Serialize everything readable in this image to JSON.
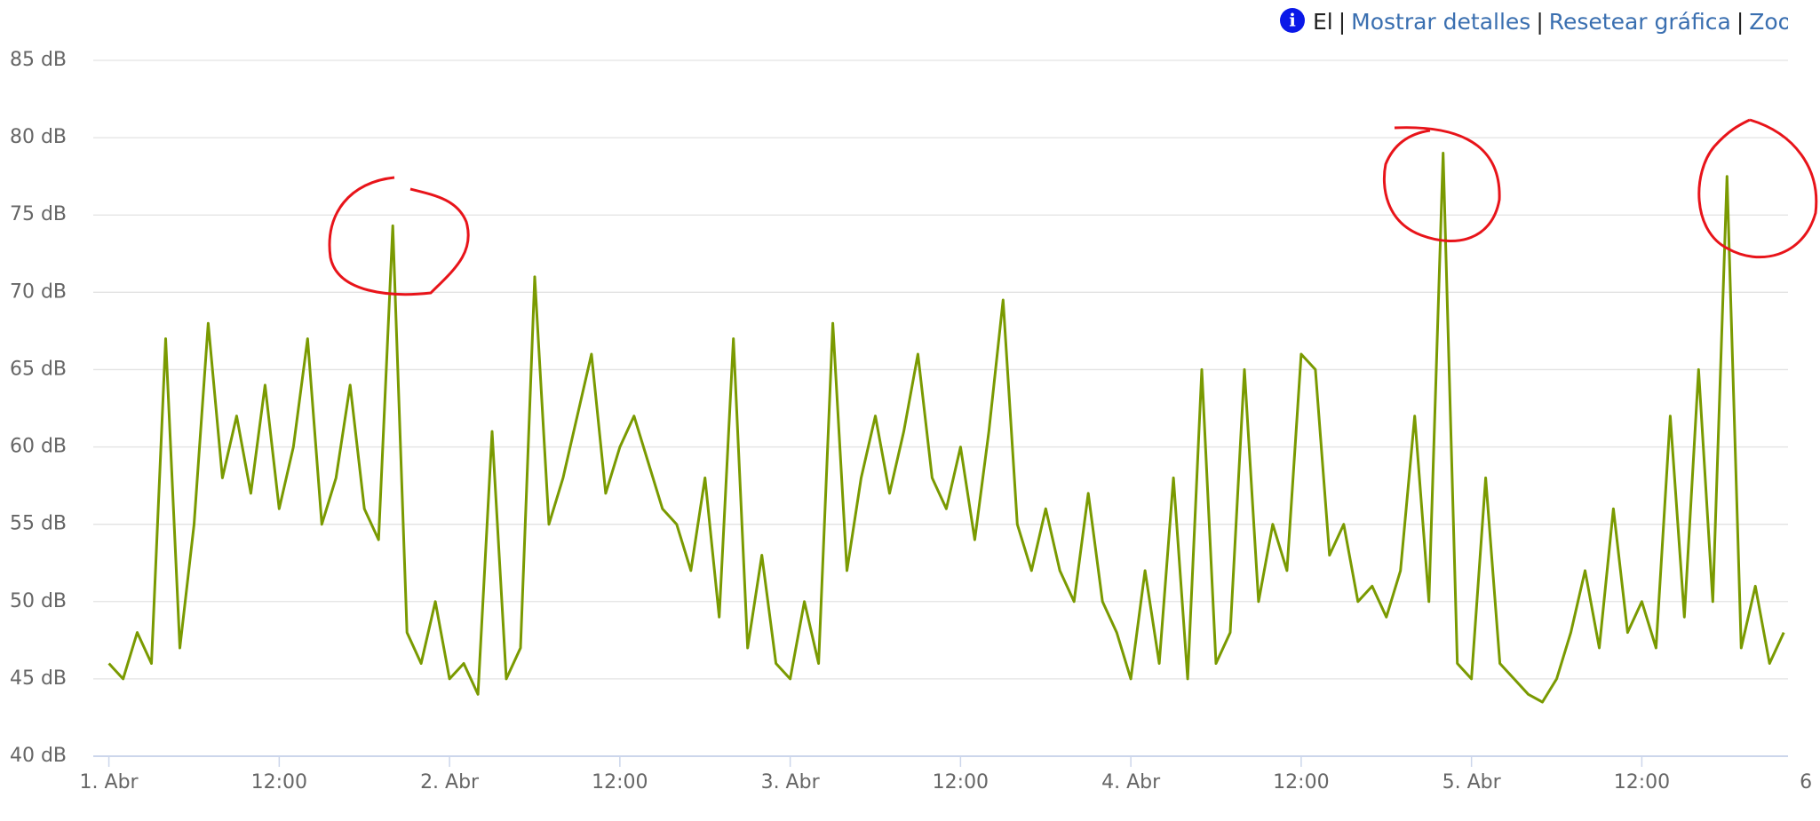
{
  "toolbar": {
    "info_label": "El",
    "separator": "|",
    "links": [
      "Mostrar detalles",
      "Resetear gráfica",
      "Zoom"
    ]
  },
  "chart_data": {
    "type": "line",
    "x": [
      0,
      1,
      2,
      3,
      4,
      5,
      6,
      7,
      8,
      9,
      10,
      11,
      12,
      13,
      14,
      15,
      16,
      17,
      18,
      19,
      20,
      21,
      22,
      23,
      24,
      25,
      26,
      27,
      28,
      29,
      30,
      31,
      32,
      33,
      34,
      35,
      36,
      37,
      38,
      39,
      40,
      41,
      42,
      43,
      44,
      45,
      46,
      47,
      48,
      49,
      50,
      51,
      52,
      53,
      54,
      55,
      56,
      57,
      58,
      59,
      60,
      61,
      62,
      63,
      64,
      65,
      66,
      67,
      68,
      69,
      70,
      71,
      72,
      73,
      74,
      75,
      76,
      77,
      78,
      79,
      80,
      81,
      82,
      83,
      84,
      85,
      86,
      87,
      88,
      89,
      90,
      91,
      92,
      93,
      94,
      95,
      96,
      97,
      98,
      99,
      100,
      101,
      102,
      103,
      104,
      105,
      106,
      107,
      108,
      109,
      110,
      111,
      112,
      113,
      114,
      115,
      116,
      117,
      118
    ],
    "series": [
      {
        "color": "#7a9a01",
        "values": [
          46,
          45,
          48,
          46,
          67,
          47,
          55,
          68,
          58,
          62,
          57,
          64,
          56,
          60,
          67,
          55,
          58,
          64,
          56,
          54,
          74.3,
          48,
          46,
          50,
          45,
          46,
          44,
          61,
          45,
          47,
          71,
          55,
          58,
          62,
          66,
          57,
          60,
          62,
          59,
          56,
          55,
          52,
          58,
          49,
          67,
          47,
          53,
          46,
          45,
          50,
          46,
          68,
          52,
          58,
          62,
          57,
          61,
          66,
          58,
          56,
          60,
          54,
          61,
          69.5,
          55,
          52,
          56,
          52,
          50,
          57,
          50,
          48,
          45,
          52,
          46,
          58,
          45,
          65,
          46,
          48,
          65,
          50,
          55,
          52,
          66,
          65,
          53,
          55,
          50,
          51,
          49,
          52,
          62,
          50,
          79,
          46,
          45,
          58,
          46,
          45,
          44,
          43.5,
          45,
          48,
          52,
          47,
          56,
          48,
          50,
          47,
          62,
          49,
          65,
          50,
          77.5,
          47,
          51,
          46,
          48
        ]
      }
    ],
    "xlim": [
      -1.1,
      118.3
    ],
    "xticks": [
      {
        "value": 0,
        "label": "1. Abr"
      },
      {
        "value": 12,
        "label": "12:00"
      },
      {
        "value": 24,
        "label": "2. Abr"
      },
      {
        "value": 36,
        "label": "12:00"
      },
      {
        "value": 48,
        "label": "3. Abr"
      },
      {
        "value": 60,
        "label": "12:00"
      },
      {
        "value": 72,
        "label": "4. Abr"
      },
      {
        "value": 84,
        "label": "12:00"
      },
      {
        "value": 96,
        "label": "5. Abr"
      },
      {
        "value": 108,
        "label": "12:00"
      },
      {
        "value": 120,
        "label": "6"
      }
    ],
    "ylim": [
      40,
      85
    ],
    "yticks": [
      {
        "value": 40,
        "label": "40 dB"
      },
      {
        "value": 45,
        "label": "45 dB"
      },
      {
        "value": 50,
        "label": "50 dB"
      },
      {
        "value": 55,
        "label": "55 dB"
      },
      {
        "value": 60,
        "label": "60 dB"
      },
      {
        "value": 65,
        "label": "65 dB"
      },
      {
        "value": 70,
        "label": "70 dB"
      },
      {
        "value": 75,
        "label": "75 dB"
      },
      {
        "value": 80,
        "label": "80 dB"
      },
      {
        "value": 85,
        "label": "85 dB"
      }
    ],
    "grid": true
  }
}
